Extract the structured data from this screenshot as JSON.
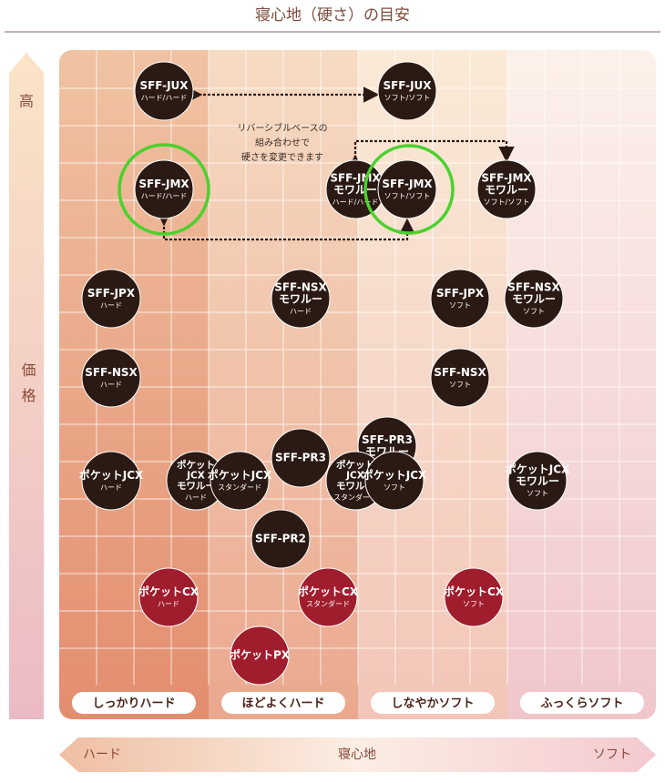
{
  "header": {
    "title": "寝心地（硬さ）の目安"
  },
  "vertical_axis": {
    "top": "高",
    "label": "価格"
  },
  "horizontal_axis": {
    "left": "ハード",
    "label": "寝心地",
    "right": "ソフト"
  },
  "columns": [
    "しっかりハード",
    "ほどよくハード",
    "しなやかソフト",
    "ふっくらソフト"
  ],
  "annotation": [
    "リバーシブルベースの",
    "組み合わせで",
    "硬さを変更できます"
  ],
  "colors": {
    "dark": "#2b1a14",
    "red": "#a01d2e",
    "highlight": "#4cd12e"
  },
  "nodes": [
    {
      "name": [
        "SFF-JUX"
      ],
      "sub": "ハード/ハード",
      "kind": "dark"
    },
    {
      "name": [
        "SFF-JUX"
      ],
      "sub": "ソフト/ソフト",
      "kind": "dark"
    },
    {
      "name": [
        "SFF-JMX"
      ],
      "sub": "ハード/ハード",
      "kind": "dark"
    },
    {
      "name": [
        "SFF-JMX",
        "モワルー"
      ],
      "sub": "ハード/ハード",
      "kind": "dark"
    },
    {
      "name": [
        "SFF-JMX"
      ],
      "sub": "ソフト/ソフト",
      "kind": "dark"
    },
    {
      "name": [
        "SFF-JMX",
        "モワルー"
      ],
      "sub": "ソフト/ソフト",
      "kind": "dark"
    },
    {
      "name": [
        "SFF-JPX"
      ],
      "sub": "ハード",
      "kind": "dark"
    },
    {
      "name": [
        "SFF-NSX",
        "モワルー"
      ],
      "sub": "ハード",
      "kind": "dark"
    },
    {
      "name": [
        "SFF-JPX"
      ],
      "sub": "ソフト",
      "kind": "dark"
    },
    {
      "name": [
        "SFF-NSX",
        "モワルー"
      ],
      "sub": "ソフト",
      "kind": "dark"
    },
    {
      "name": [
        "SFF-NSX"
      ],
      "sub": "ハード",
      "kind": "dark"
    },
    {
      "name": [
        "SFF-NSX"
      ],
      "sub": "ソフト",
      "kind": "dark"
    },
    {
      "name": [
        "SFF-PR3"
      ],
      "kind": "dark"
    },
    {
      "name": [
        "SFF-PR3",
        "モワルー"
      ],
      "kind": "dark"
    },
    {
      "name": [
        "ポケットJCX"
      ],
      "sub": "ハード",
      "kind": "dark"
    },
    {
      "name": [
        "ポケット",
        "JCX",
        "モワルー"
      ],
      "sub": "ハード",
      "kind": "dark"
    },
    {
      "name": [
        "ポケットJCX"
      ],
      "sub": "スタンダード",
      "kind": "dark"
    },
    {
      "name": [
        "ポケット",
        "JCX",
        "モワルー"
      ],
      "sub": "スタンダード",
      "kind": "dark"
    },
    {
      "name": [
        "ポケットJCX"
      ],
      "sub": "ソフト",
      "kind": "dark"
    },
    {
      "name": [
        "ポケットJCX",
        "モワルー"
      ],
      "sub": "ソフト",
      "kind": "dark"
    },
    {
      "name": [
        "SFF-PR2"
      ],
      "kind": "dark"
    },
    {
      "name": [
        "ポケットCX"
      ],
      "sub": "ハード",
      "kind": "red"
    },
    {
      "name": [
        "ポケットCX"
      ],
      "sub": "スタンダード",
      "kind": "red"
    },
    {
      "name": [
        "ポケットCX"
      ],
      "sub": "ソフト",
      "kind": "red"
    },
    {
      "name": [
        "ポケットPX"
      ],
      "kind": "red"
    }
  ]
}
